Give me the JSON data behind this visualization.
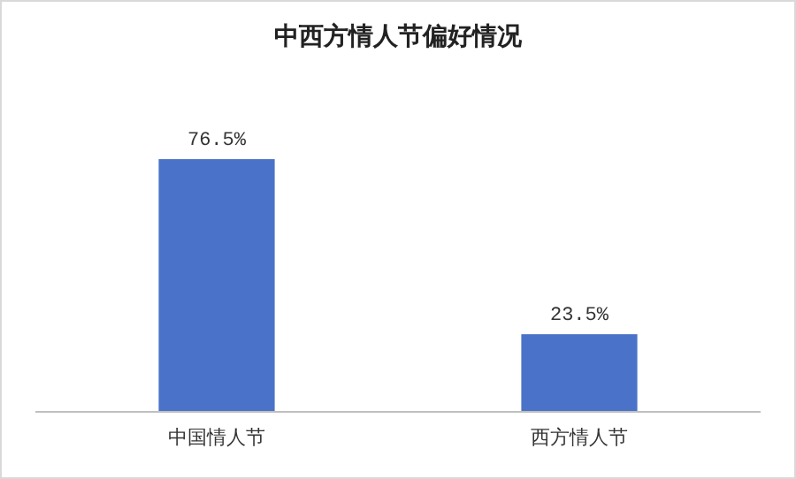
{
  "chart_data": {
    "type": "bar",
    "title": "中西方情人节偏好情况",
    "categories": [
      "中国情人节",
      "西方情人节"
    ],
    "values": [
      76.5,
      23.5
    ],
    "color": "#4a72c8",
    "value_labels": [
      "76.5%",
      "23.5%"
    ]
  }
}
